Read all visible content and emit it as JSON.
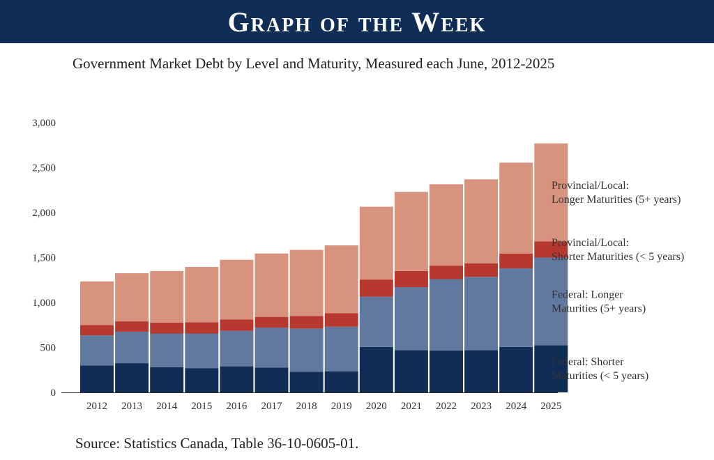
{
  "header": {
    "banner_title": "Graph of the Week",
    "subtitle": "Government Market Debt by Level and Maturity, Measured each June, 2012-2025",
    "source": "Source: Statistics Canada, Table 36-10-0605-01."
  },
  "chart_data": {
    "type": "bar",
    "stacked": true,
    "title": "Government Market Debt by Level and Maturity, Measured each June, 2012-2025",
    "xlabel": "",
    "ylabel": "",
    "ylim": [
      0,
      3000
    ],
    "yticks": [
      0,
      500,
      1000,
      1500,
      2000,
      2500,
      3000
    ],
    "ytick_labels": [
      "0",
      "500",
      "1,000",
      "1,500",
      "2,000",
      "2,500",
      "3,000"
    ],
    "grid": false,
    "legend": "right, labels beside final bar",
    "categories": [
      "2012",
      "2013",
      "2014",
      "2015",
      "2016",
      "2017",
      "2018",
      "2019",
      "2020",
      "2021",
      "2022",
      "2023",
      "2024",
      "2025"
    ],
    "series": [
      {
        "name_lines": [
          "Federal: Shorter",
          "Maturities (< 5 years)"
        ],
        "color": "#0f2d55",
        "values": [
          300,
          325,
          280,
          270,
          290,
          275,
          230,
          235,
          505,
          470,
          465,
          470,
          505,
          525
        ]
      },
      {
        "name_lines": [
          "Federal: Longer",
          "Maturities (5+ years)"
        ],
        "color": "#62799f",
        "values": [
          335,
          350,
          375,
          385,
          395,
          445,
          480,
          495,
          560,
          700,
          795,
          815,
          875,
          975
        ]
      },
      {
        "name_lines": [
          "Provincial/Local:",
          "Shorter Maturities (< 5 years)"
        ],
        "color": "#b7382f",
        "values": [
          115,
          115,
          120,
          125,
          125,
          120,
          140,
          150,
          190,
          180,
          150,
          150,
          165,
          180
        ]
      },
      {
        "name_lines": [
          "Provincial/Local:",
          "Longer Maturities (5+ years)"
        ],
        "color": "#d7937d",
        "values": [
          485,
          535,
          575,
          615,
          665,
          705,
          735,
          755,
          810,
          880,
          905,
          935,
          1010,
          1090
        ]
      }
    ]
  }
}
